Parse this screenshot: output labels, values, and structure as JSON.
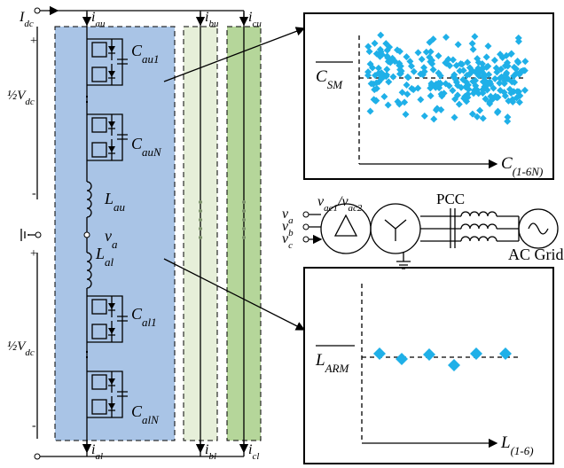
{
  "dc_bus": {
    "current": [
      {
        "t": "I",
        "s": "dc"
      }
    ],
    "upper_plus": "+",
    "upper_minus": "-",
    "upper_voltage": [
      {
        "t": "½V",
        "s": "dc"
      }
    ],
    "lower_plus": "+",
    "lower_minus": "-",
    "lower_voltage": [
      {
        "t": "½V",
        "s": "dc"
      }
    ]
  },
  "arm_currents": {
    "au": [
      {
        "t": "i",
        "s": "au"
      }
    ],
    "bu": [
      {
        "t": "i",
        "s": "bu"
      }
    ],
    "cu": [
      {
        "t": "i",
        "s": "cu"
      }
    ],
    "al": [
      {
        "t": "i",
        "s": "al"
      }
    ],
    "bl": [
      {
        "t": "i",
        "s": "bl"
      }
    ],
    "cl": [
      {
        "t": "i",
        "s": "cl"
      }
    ]
  },
  "components": {
    "c_au1": [
      {
        "t": "C",
        "s": "au1"
      }
    ],
    "c_auN": [
      {
        "t": "C",
        "s": "auN"
      }
    ],
    "l_au": [
      {
        "t": "L",
        "s": "au"
      }
    ],
    "v_a": [
      {
        "t": "v",
        "s": "a"
      }
    ],
    "l_al": [
      {
        "t": "L",
        "s": "al"
      }
    ],
    "c_al1": [
      {
        "t": "C",
        "s": "al1"
      }
    ],
    "c_alN": [
      {
        "t": "C",
        "s": "alN"
      }
    ]
  },
  "capacitor_plot": {
    "y_label": [
      {
        "t": "C",
        "s": "SM"
      }
    ],
    "x_label": [
      {
        "t": "C",
        "s": "(1-6N)"
      }
    ]
  },
  "inductor_plot": {
    "y_label": [
      {
        "t": "L",
        "s": "ARM"
      }
    ],
    "x_label": [
      {
        "t": "L",
        "s": "(1-6)"
      }
    ]
  },
  "grid": {
    "va": [
      {
        "t": "v",
        "s": "a"
      }
    ],
    "vb": [
      {
        "t": "v",
        "s": "b"
      }
    ],
    "vc": [
      {
        "t": "v",
        "s": "c"
      }
    ],
    "transformer": [
      {
        "t": "v",
        "s": "ac1"
      },
      {
        "t": "/v",
        "s": "ac2"
      }
    ],
    "pcc": "PCC",
    "ac_grid": "AC Grid"
  }
}
